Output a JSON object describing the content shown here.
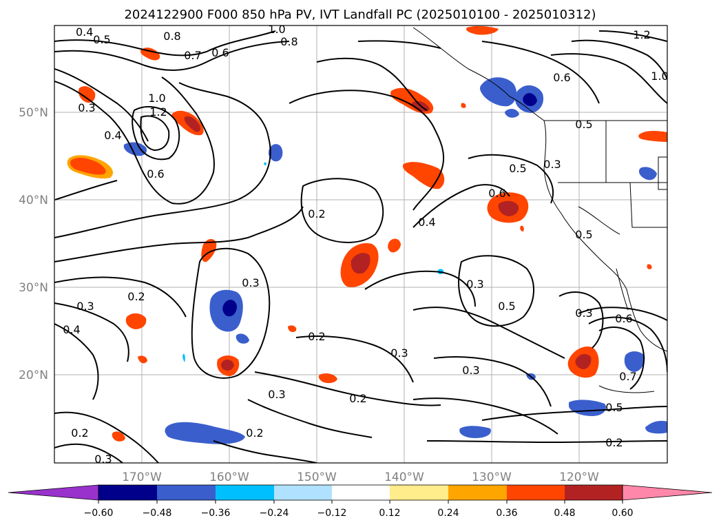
{
  "title": "2024122900 F000 850 hPa PV, IVT Landfall PC (2025010100 - 2025010312)",
  "axes": {
    "lon_labels": [
      "170°W",
      "160°W",
      "150°W",
      "140°W",
      "130°W",
      "120°W"
    ],
    "lat_labels": [
      "50°N",
      "40°N",
      "30°N",
      "20°N"
    ]
  },
  "colorbar": {
    "ticks": [
      "−0.60",
      "−0.48",
      "−0.36",
      "−0.24",
      "−0.12",
      "0.12",
      "0.24",
      "0.36",
      "0.48",
      "0.60"
    ],
    "colors": [
      "#9932cc",
      "#00008b",
      "#3a5fcd",
      "#00bfff",
      "#b0e2ff",
      "#ffffff",
      "#ffec8b",
      "#ffa500",
      "#ff4500",
      "#b22222",
      "#ff88aa"
    ]
  },
  "contour_labels": [
    "0.4",
    "0.5",
    "0.8",
    "0.7",
    "0.6",
    "1.0",
    "0.8",
    "1.2",
    "1.0",
    "0.6",
    "0.5",
    "1.2",
    "1.0",
    "0.3",
    "0.4",
    "0.6",
    "0.2",
    "0.4",
    "0.5",
    "0.3",
    "0.6",
    "0.5",
    "0.3",
    "0.2",
    "0.3",
    "0.4",
    "0.2",
    "0.3",
    "0.3",
    "0.5",
    "0.3",
    "0.6",
    "0.7",
    "0.5",
    "0.2",
    "0.3",
    "0.2",
    "0.2",
    "0.3",
    "0.2",
    "0.3"
  ]
}
